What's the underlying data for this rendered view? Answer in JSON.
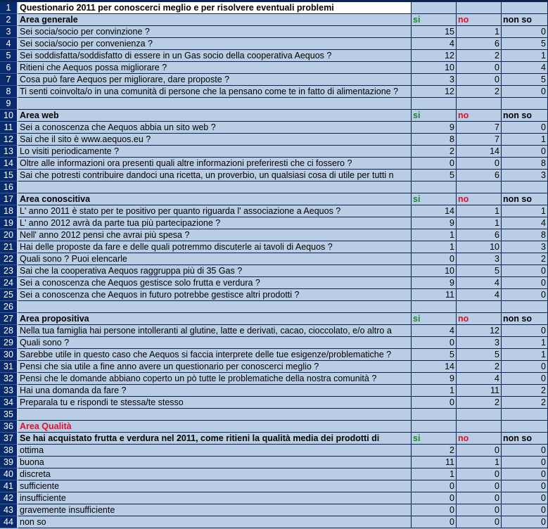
{
  "colors": {
    "cell_bg": "#b9cde5",
    "row_header_bg": "#0a2a6e",
    "grid": "#0c2352",
    "si": "#1e8a2e",
    "no": "#e0102a"
  },
  "rows": [
    {
      "n": "1",
      "type": "title",
      "a": "Questionario 2011 per conoscerci meglio e per risolvere eventuali problemi"
    },
    {
      "n": "2",
      "type": "section",
      "a": "Area generale",
      "b": "si",
      "c": "no",
      "d": "non so"
    },
    {
      "n": "3",
      "a": "Sei socia/socio per convinzione  ?",
      "b": "15",
      "c": "1",
      "d": "0"
    },
    {
      "n": "4",
      "a": "Sei socia/socio per convenienza  ?",
      "b": "4",
      "c": "6",
      "d": "5"
    },
    {
      "n": "5",
      "a": "Sei soddisfatta/soddisfatto di essere in un Gas socio della cooperativa Aequos  ?",
      "b": "12",
      "c": "2",
      "d": "1"
    },
    {
      "n": "6",
      "a": "Ritieni che Aequos possa migliorare  ?",
      "b": "10",
      "c": "0",
      "d": "4"
    },
    {
      "n": "7",
      "a": "Cosa può fare Aequos per migliorare, dare proposte  ?",
      "b": "3",
      "c": "0",
      "d": "5"
    },
    {
      "n": "8",
      "a": "Ti senti coinvolta/o in una comunità di persone che la pensano come te in fatto di alimentazione ?",
      "b": "12",
      "c": "2",
      "d": "0"
    },
    {
      "n": "9",
      "a": ""
    },
    {
      "n": "10",
      "type": "section",
      "a": "Area web",
      "b": "si",
      "c": "no",
      "d": "non so"
    },
    {
      "n": "11",
      "a": "Sei a conoscenza che Aequos abbia un sito web  ?",
      "b": "9",
      "c": "7",
      "d": "0"
    },
    {
      "n": "12",
      "a": "Sai che il sito è www.aequos.eu  ?",
      "b": "8",
      "c": "7",
      "d": "1"
    },
    {
      "n": "13",
      "a": "Lo visiti periodicamente  ?",
      "b": "2",
      "c": "14",
      "d": "0"
    },
    {
      "n": "14",
      "a": "Oltre alle informazioni ora presenti quali altre informazioni preferiresti che ci fossero  ?",
      "b": "0",
      "c": "0",
      "d": "8"
    },
    {
      "n": "15",
      "a": "Sai che potresti contribuire dandoci una ricetta, un proverbio, un qualsiasi cosa di utile per tutti n",
      "b": "5",
      "c": "6",
      "d": "3"
    },
    {
      "n": "16",
      "a": ""
    },
    {
      "n": "17",
      "type": "section",
      "a": "Area conoscitiva",
      "b": "si",
      "c": "no",
      "d": "non so"
    },
    {
      "n": "18",
      "a": "L' anno 2011 è stato per te positivo per quanto riguarda l' associazione a Aequos  ?",
      "b": "14",
      "c": "1",
      "d": "1"
    },
    {
      "n": "19",
      "a": "L' anno 2012 avrà da parte tua più partecipazione  ?",
      "b": "9",
      "c": "1",
      "d": "4"
    },
    {
      "n": "20",
      "a": "Nell' anno 2012 pensi che avrai più spesa  ?",
      "b": "1",
      "c": "6",
      "d": "8"
    },
    {
      "n": "21",
      "a": "Hai delle proposte da fare e delle quali potremmo discuterle ai tavoli di Aequos  ?",
      "b": "1",
      "c": "10",
      "d": "3"
    },
    {
      "n": "22",
      "a": "Quali sono ? Puoi elencarle",
      "b": "0",
      "c": "3",
      "d": "2"
    },
    {
      "n": "23",
      "a": "Sai che la cooperativa Aequos raggruppa più di 35 Gas  ?",
      "b": "10",
      "c": "5",
      "d": "0"
    },
    {
      "n": "24",
      "a": "Sei a conoscenza che Aequos gestisce solo frutta e verdura  ?",
      "b": "9",
      "c": "4",
      "d": "0"
    },
    {
      "n": "25",
      "a": "Sei a conoscenza che Aequos in futuro potrebbe gestisce altri prodotti  ?",
      "b": "11",
      "c": "4",
      "d": "0"
    },
    {
      "n": "26",
      "a": ""
    },
    {
      "n": "27",
      "type": "section",
      "a": "Area propositiva",
      "b": "si",
      "c": "no",
      "d": "non so"
    },
    {
      "n": "28",
      "a": "Nella tua famiglia hai persone intolleranti al glutine,  latte e derivati, cacao, cioccolato, e/o altro a",
      "b": "4",
      "c": "12",
      "d": "0"
    },
    {
      "n": "29",
      "a": "Quali sono ?",
      "b": "0",
      "c": "3",
      "d": "1"
    },
    {
      "n": "30",
      "a": "Sarebbe utile in questo caso che Aequos si faccia interprete delle tue esigenze/problematiche ?",
      "b": "5",
      "c": "5",
      "d": "1"
    },
    {
      "n": "31",
      "a": "Pensi che sia utile a fine anno avere un questionario per conoscerci meglio  ?",
      "b": "14",
      "c": "2",
      "d": "0"
    },
    {
      "n": "32",
      "a": "Pensi che le domande abbiano coperto un pò tutte le problematiche della nostra comunità  ?",
      "b": "9",
      "c": "4",
      "d": "0"
    },
    {
      "n": "33",
      "a": "Hai una domanda da fare  ?",
      "b": "1",
      "c": "11",
      "d": "2"
    },
    {
      "n": "34",
      "a": "Preparala tu e rispondi te stessa/te stesso",
      "b": "0",
      "c": "2",
      "d": "2"
    },
    {
      "n": "35",
      "a": ""
    },
    {
      "n": "36",
      "type": "section-red",
      "a": "Area Qualità"
    },
    {
      "n": "37",
      "type": "section",
      "a": "Se hai acquistato frutta e verdura nel 2011, come ritieni la qualità media dei prodotti di",
      "b": "si",
      "c": "no",
      "d": "non so"
    },
    {
      "n": "38",
      "a": "ottima",
      "b": "2",
      "c": "0",
      "d": "0"
    },
    {
      "n": "39",
      "a": "buona",
      "b": "11",
      "c": "1",
      "d": "0"
    },
    {
      "n": "40",
      "a": "discreta",
      "b": "1",
      "c": "0",
      "d": "0"
    },
    {
      "n": "41",
      "a": "sufficiente",
      "b": "0",
      "c": "0",
      "d": "0"
    },
    {
      "n": "42",
      "a": "insufficiente",
      "b": "0",
      "c": "0",
      "d": "0"
    },
    {
      "n": "43",
      "a": "gravemente insufficiente",
      "b": "0",
      "c": "0",
      "d": "0"
    },
    {
      "n": "44",
      "a": "non so",
      "b": "0",
      "c": "0",
      "d": "0"
    }
  ]
}
